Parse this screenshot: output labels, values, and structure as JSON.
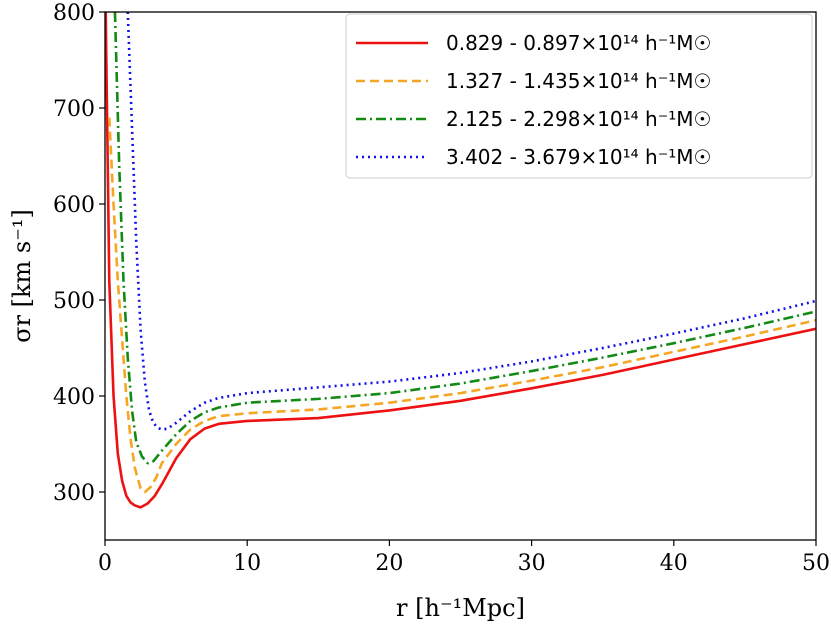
{
  "chart_data": {
    "type": "line",
    "title": "",
    "xlabel": "r [h⁻¹Mpc]",
    "ylabel": "σr [km s⁻¹]",
    "xlim": [
      0,
      50
    ],
    "ylim": [
      250,
      800
    ],
    "xticks": [
      0,
      10,
      20,
      30,
      40,
      50
    ],
    "yticks": [
      300,
      400,
      500,
      600,
      700,
      800
    ],
    "grid": false,
    "legend_position": "top-right",
    "series": [
      {
        "name": "0.829 - 0.897×10¹⁴ h⁻¹M☉",
        "color": "#ee1111",
        "dash": "solid",
        "x": [
          0.05,
          0.3,
          0.6,
          0.9,
          1.2,
          1.5,
          1.8,
          2.1,
          2.5,
          3.0,
          3.5,
          4.0,
          5.0,
          6.0,
          7.0,
          8.0,
          10.0,
          15.0,
          20.0,
          25.0,
          30.0,
          35.0,
          40.0,
          45.0,
          50.0
        ],
        "y": [
          800,
          520,
          400,
          340,
          312,
          296,
          289,
          286,
          284,
          288,
          296,
          308,
          335,
          355,
          366,
          371,
          374,
          377,
          385,
          395,
          408,
          422,
          438,
          454,
          470
        ]
      },
      {
        "name": "1.327 - 1.435×10¹⁴ h⁻¹M☉",
        "color": "#f5a623",
        "dash": "dashed",
        "x": [
          0.3,
          0.6,
          0.9,
          1.2,
          1.5,
          1.8,
          2.1,
          2.5,
          2.8,
          3.2,
          3.6,
          4.0,
          5.0,
          6.0,
          7.0,
          8.0,
          10.0,
          15.0,
          20.0,
          25.0,
          30.0,
          35.0,
          40.0,
          45.0,
          50.0
        ],
        "y": [
          690,
          600,
          520,
          460,
          400,
          355,
          325,
          304,
          300,
          305,
          315,
          330,
          350,
          365,
          374,
          379,
          382,
          386,
          393,
          403,
          416,
          430,
          446,
          462,
          479
        ]
      },
      {
        "name": "2.125 - 2.298×10¹⁴ h⁻¹M☉",
        "color": "#138a13",
        "dash": "dashdot",
        "x": [
          0.7,
          1.0,
          1.3,
          1.6,
          1.9,
          2.2,
          2.6,
          3.0,
          3.4,
          4.0,
          5.0,
          6.0,
          7.0,
          8.0,
          10.0,
          15.0,
          20.0,
          25.0,
          30.0,
          35.0,
          40.0,
          45.0,
          50.0
        ],
        "y": [
          800,
          640,
          520,
          440,
          385,
          352,
          337,
          330,
          332,
          343,
          360,
          374,
          383,
          388,
          393,
          397,
          403,
          413,
          426,
          440,
          455,
          471,
          488
        ]
      },
      {
        "name": "3.402 - 3.679×10¹⁴ h⁻¹M☉",
        "color": "#1010ee",
        "dash": "dotted",
        "x": [
          1.6,
          1.9,
          2.2,
          2.5,
          2.8,
          3.1,
          3.4,
          3.7,
          4.0,
          4.4,
          5.0,
          6.0,
          7.0,
          8.0,
          10.0,
          15.0,
          20.0,
          25.0,
          30.0,
          35.0,
          40.0,
          45.0,
          50.0
        ],
        "y": [
          800,
          680,
          560,
          470,
          415,
          385,
          372,
          367,
          365,
          366,
          372,
          384,
          393,
          398,
          403,
          409,
          415,
          424,
          436,
          450,
          465,
          481,
          499
        ]
      }
    ]
  }
}
